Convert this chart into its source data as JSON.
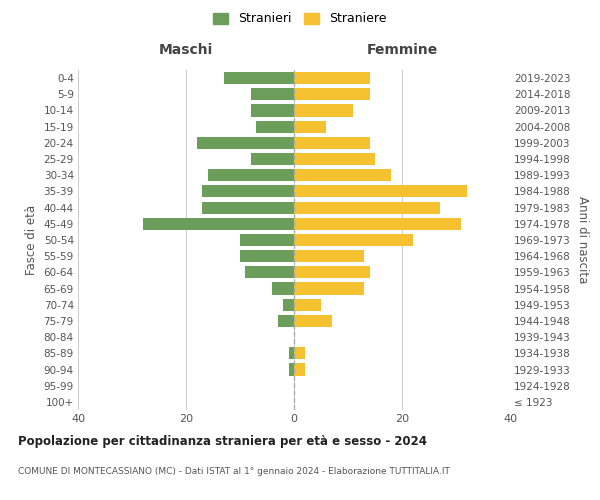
{
  "age_groups": [
    "100+",
    "95-99",
    "90-94",
    "85-89",
    "80-84",
    "75-79",
    "70-74",
    "65-69",
    "60-64",
    "55-59",
    "50-54",
    "45-49",
    "40-44",
    "35-39",
    "30-34",
    "25-29",
    "20-24",
    "15-19",
    "10-14",
    "5-9",
    "0-4"
  ],
  "birth_years": [
    "≤ 1923",
    "1924-1928",
    "1929-1933",
    "1934-1938",
    "1939-1943",
    "1944-1948",
    "1949-1953",
    "1954-1958",
    "1959-1963",
    "1964-1968",
    "1969-1973",
    "1974-1978",
    "1979-1983",
    "1984-1988",
    "1989-1993",
    "1994-1998",
    "1999-2003",
    "2004-2008",
    "2009-2013",
    "2014-2018",
    "2019-2023"
  ],
  "maschi": [
    0,
    0,
    1,
    1,
    0,
    3,
    2,
    4,
    9,
    10,
    10,
    28,
    17,
    17,
    16,
    8,
    18,
    7,
    8,
    8,
    13
  ],
  "femmine": [
    0,
    0,
    2,
    2,
    0,
    7,
    5,
    13,
    14,
    13,
    22,
    31,
    27,
    32,
    18,
    15,
    14,
    6,
    11,
    14,
    14
  ],
  "color_maschi": "#6a9e5a",
  "color_femmine": "#f5c130",
  "background_color": "#ffffff",
  "grid_color": "#cccccc",
  "title": "Popolazione per cittadinanza straniera per età e sesso - 2024",
  "subtitle": "COMUNE DI MONTECASSIANO (MC) - Dati ISTAT al 1° gennaio 2024 - Elaborazione TUTTITALIA.IT",
  "xlabel_left": "Maschi",
  "xlabel_right": "Femmine",
  "ylabel_left": "Fasce di età",
  "ylabel_right": "Anni di nascita",
  "xlim": 40,
  "legend_maschi": "Stranieri",
  "legend_femmine": "Straniere"
}
